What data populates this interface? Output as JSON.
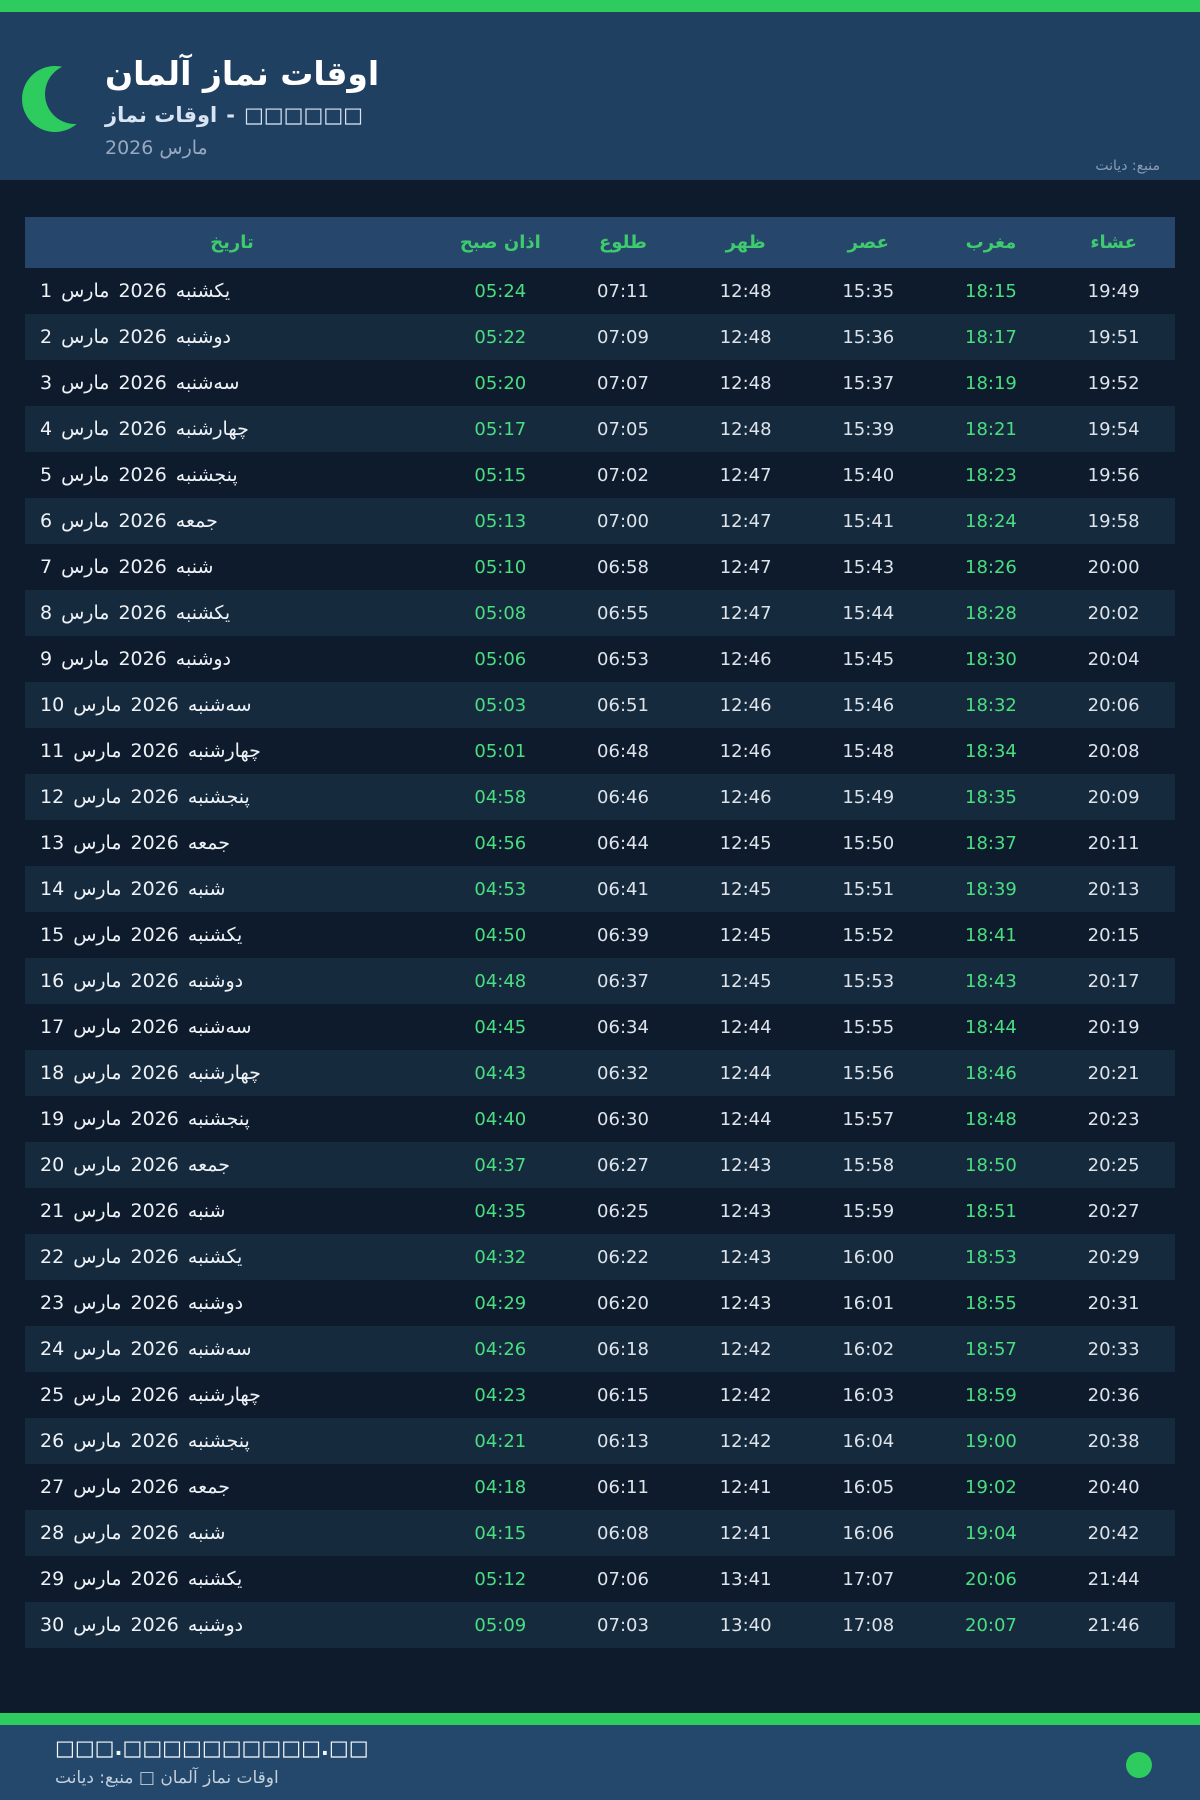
{
  "header": {
    "title": "اوقات نماز آلمان",
    "subtitle_prefix": "اوقات نماز",
    "subtitle_separator": "-",
    "subtitle_city": "□□□□□□",
    "month_label": "مارس 2026",
    "source_label": "منبع: دیانت"
  },
  "table": {
    "columns": [
      "تاریخ",
      "اذان صبح",
      "طلوع",
      "ظهر",
      "عصر",
      "مغرب",
      "عشاء"
    ],
    "month_name": "مارس",
    "year": "2026",
    "rows": [
      {
        "day": "1",
        "weekday": "یکشنبه",
        "fajr": "05:24",
        "sunrise": "07:11",
        "dhuhr": "12:48",
        "asr": "15:35",
        "maghrib": "18:15",
        "isha": "19:49"
      },
      {
        "day": "2",
        "weekday": "دوشنبه",
        "fajr": "05:22",
        "sunrise": "07:09",
        "dhuhr": "12:48",
        "asr": "15:36",
        "maghrib": "18:17",
        "isha": "19:51"
      },
      {
        "day": "3",
        "weekday": "سه‌شنبه",
        "fajr": "05:20",
        "sunrise": "07:07",
        "dhuhr": "12:48",
        "asr": "15:37",
        "maghrib": "18:19",
        "isha": "19:52"
      },
      {
        "day": "4",
        "weekday": "چهارشنبه",
        "fajr": "05:17",
        "sunrise": "07:05",
        "dhuhr": "12:48",
        "asr": "15:39",
        "maghrib": "18:21",
        "isha": "19:54"
      },
      {
        "day": "5",
        "weekday": "پنجشنبه",
        "fajr": "05:15",
        "sunrise": "07:02",
        "dhuhr": "12:47",
        "asr": "15:40",
        "maghrib": "18:23",
        "isha": "19:56"
      },
      {
        "day": "6",
        "weekday": "جمعه",
        "fajr": "05:13",
        "sunrise": "07:00",
        "dhuhr": "12:47",
        "asr": "15:41",
        "maghrib": "18:24",
        "isha": "19:58"
      },
      {
        "day": "7",
        "weekday": "شنبه",
        "fajr": "05:10",
        "sunrise": "06:58",
        "dhuhr": "12:47",
        "asr": "15:43",
        "maghrib": "18:26",
        "isha": "20:00"
      },
      {
        "day": "8",
        "weekday": "یکشنبه",
        "fajr": "05:08",
        "sunrise": "06:55",
        "dhuhr": "12:47",
        "asr": "15:44",
        "maghrib": "18:28",
        "isha": "20:02"
      },
      {
        "day": "9",
        "weekday": "دوشنبه",
        "fajr": "05:06",
        "sunrise": "06:53",
        "dhuhr": "12:46",
        "asr": "15:45",
        "maghrib": "18:30",
        "isha": "20:04"
      },
      {
        "day": "10",
        "weekday": "سه‌شنبه",
        "fajr": "05:03",
        "sunrise": "06:51",
        "dhuhr": "12:46",
        "asr": "15:46",
        "maghrib": "18:32",
        "isha": "20:06"
      },
      {
        "day": "11",
        "weekday": "چهارشنبه",
        "fajr": "05:01",
        "sunrise": "06:48",
        "dhuhr": "12:46",
        "asr": "15:48",
        "maghrib": "18:34",
        "isha": "20:08"
      },
      {
        "day": "12",
        "weekday": "پنجشنبه",
        "fajr": "04:58",
        "sunrise": "06:46",
        "dhuhr": "12:46",
        "asr": "15:49",
        "maghrib": "18:35",
        "isha": "20:09"
      },
      {
        "day": "13",
        "weekday": "جمعه",
        "fajr": "04:56",
        "sunrise": "06:44",
        "dhuhr": "12:45",
        "asr": "15:50",
        "maghrib": "18:37",
        "isha": "20:11"
      },
      {
        "day": "14",
        "weekday": "شنبه",
        "fajr": "04:53",
        "sunrise": "06:41",
        "dhuhr": "12:45",
        "asr": "15:51",
        "maghrib": "18:39",
        "isha": "20:13"
      },
      {
        "day": "15",
        "weekday": "یکشنبه",
        "fajr": "04:50",
        "sunrise": "06:39",
        "dhuhr": "12:45",
        "asr": "15:52",
        "maghrib": "18:41",
        "isha": "20:15"
      },
      {
        "day": "16",
        "weekday": "دوشنبه",
        "fajr": "04:48",
        "sunrise": "06:37",
        "dhuhr": "12:45",
        "asr": "15:53",
        "maghrib": "18:43",
        "isha": "20:17"
      },
      {
        "day": "17",
        "weekday": "سه‌شنبه",
        "fajr": "04:45",
        "sunrise": "06:34",
        "dhuhr": "12:44",
        "asr": "15:55",
        "maghrib": "18:44",
        "isha": "20:19"
      },
      {
        "day": "18",
        "weekday": "چهارشنبه",
        "fajr": "04:43",
        "sunrise": "06:32",
        "dhuhr": "12:44",
        "asr": "15:56",
        "maghrib": "18:46",
        "isha": "20:21"
      },
      {
        "day": "19",
        "weekday": "پنجشنبه",
        "fajr": "04:40",
        "sunrise": "06:30",
        "dhuhr": "12:44",
        "asr": "15:57",
        "maghrib": "18:48",
        "isha": "20:23"
      },
      {
        "day": "20",
        "weekday": "جمعه",
        "fajr": "04:37",
        "sunrise": "06:27",
        "dhuhr": "12:43",
        "asr": "15:58",
        "maghrib": "18:50",
        "isha": "20:25"
      },
      {
        "day": "21",
        "weekday": "شنبه",
        "fajr": "04:35",
        "sunrise": "06:25",
        "dhuhr": "12:43",
        "asr": "15:59",
        "maghrib": "18:51",
        "isha": "20:27"
      },
      {
        "day": "22",
        "weekday": "یکشنبه",
        "fajr": "04:32",
        "sunrise": "06:22",
        "dhuhr": "12:43",
        "asr": "16:00",
        "maghrib": "18:53",
        "isha": "20:29"
      },
      {
        "day": "23",
        "weekday": "دوشنبه",
        "fajr": "04:29",
        "sunrise": "06:20",
        "dhuhr": "12:43",
        "asr": "16:01",
        "maghrib": "18:55",
        "isha": "20:31"
      },
      {
        "day": "24",
        "weekday": "سه‌شنبه",
        "fajr": "04:26",
        "sunrise": "06:18",
        "dhuhr": "12:42",
        "asr": "16:02",
        "maghrib": "18:57",
        "isha": "20:33"
      },
      {
        "day": "25",
        "weekday": "چهارشنبه",
        "fajr": "04:23",
        "sunrise": "06:15",
        "dhuhr": "12:42",
        "asr": "16:03",
        "maghrib": "18:59",
        "isha": "20:36"
      },
      {
        "day": "26",
        "weekday": "پنجشنبه",
        "fajr": "04:21",
        "sunrise": "06:13",
        "dhuhr": "12:42",
        "asr": "16:04",
        "maghrib": "19:00",
        "isha": "20:38"
      },
      {
        "day": "27",
        "weekday": "جمعه",
        "fajr": "04:18",
        "sunrise": "06:11",
        "dhuhr": "12:41",
        "asr": "16:05",
        "maghrib": "19:02",
        "isha": "20:40"
      },
      {
        "day": "28",
        "weekday": "شنبه",
        "fajr": "04:15",
        "sunrise": "06:08",
        "dhuhr": "12:41",
        "asr": "16:06",
        "maghrib": "19:04",
        "isha": "20:42"
      },
      {
        "day": "29",
        "weekday": "یکشنبه",
        "fajr": "05:12",
        "sunrise": "07:06",
        "dhuhr": "13:41",
        "asr": "17:07",
        "maghrib": "20:06",
        "isha": "21:44"
      },
      {
        "day": "30",
        "weekday": "دوشنبه",
        "fajr": "05:09",
        "sunrise": "07:03",
        "dhuhr": "13:40",
        "asr": "17:08",
        "maghrib": "20:07",
        "isha": "21:46"
      }
    ]
  },
  "footer": {
    "line1": "□□□.□□□□□□□□□□.□□",
    "line2": "اوقات نماز آلمان □ منبع: دیانت"
  },
  "colors": {
    "accent_green": "#2ecb5f",
    "label_green": "#3ecb6e",
    "time_green": "#4ade80",
    "header_bg": "#204062",
    "footer_bg": "#24476c",
    "page_bg": "#0d1b2c",
    "stripe_bg": "#162a3e",
    "table_header_bg": "#26476b"
  },
  "icons": {
    "moon": "crescent-moon-icon",
    "footer_dot": "green-dot-icon"
  }
}
